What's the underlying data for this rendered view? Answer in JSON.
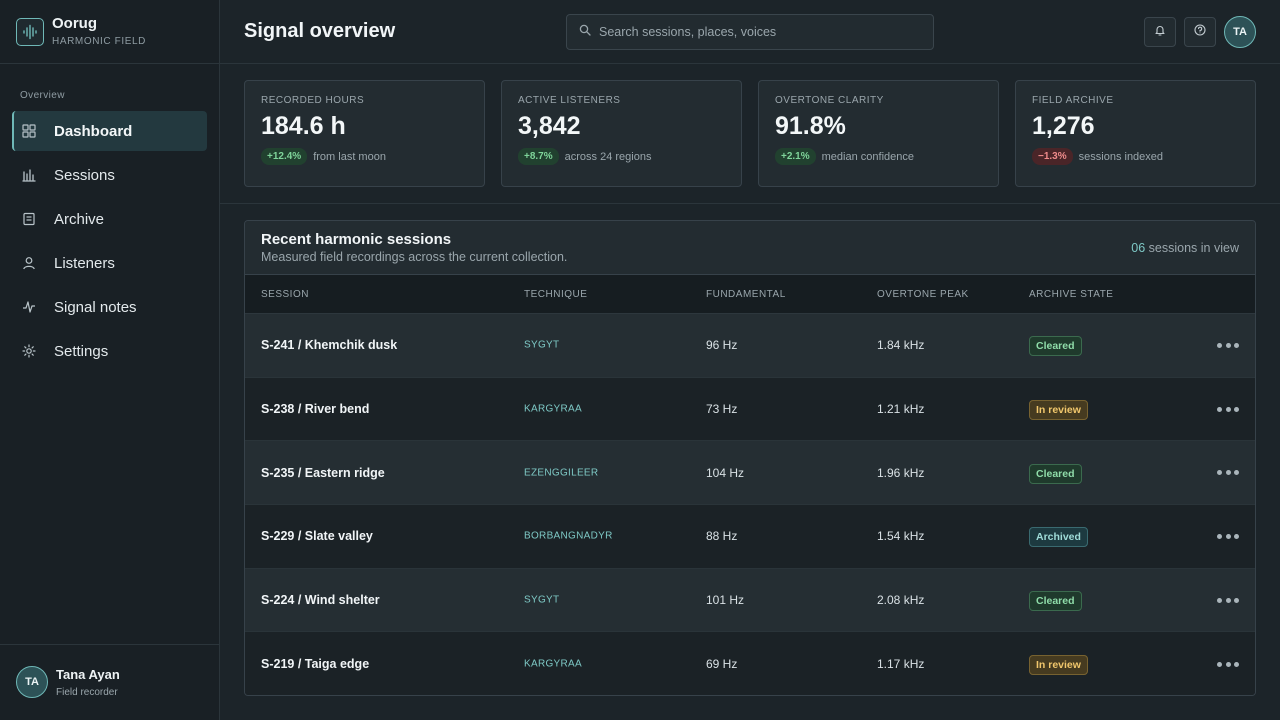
{
  "brand": {
    "name": "Oorug",
    "subtitle": "HARMONIC FIELD"
  },
  "sidebar": {
    "section_label": "Overview",
    "items": [
      {
        "label": "Dashboard",
        "icon": "grid-icon",
        "active": true
      },
      {
        "label": "Sessions",
        "icon": "bars-icon"
      },
      {
        "label": "Archive",
        "icon": "archive-icon"
      },
      {
        "label": "Listeners",
        "icon": "user-icon"
      },
      {
        "label": "Signal notes",
        "icon": "pulse-icon"
      },
      {
        "label": "Settings",
        "icon": "gear-icon"
      }
    ],
    "user": {
      "initials": "TA",
      "name": "Tana Ayan",
      "role": "Field recorder"
    }
  },
  "header": {
    "title": "Signal overview",
    "search_placeholder": "Search sessions, places, voices",
    "avatar_initials": "TA"
  },
  "kpis": [
    {
      "label": "RECORDED HOURS",
      "value": "184.6 h",
      "delta": "+12.4%",
      "delta_dir": "pos",
      "note": "from last moon"
    },
    {
      "label": "ACTIVE LISTENERS",
      "value": "3,842",
      "delta": "+8.7%",
      "delta_dir": "pos",
      "note": "across 24 regions"
    },
    {
      "label": "OVERTONE CLARITY",
      "value": "91.8%",
      "delta": "+2.1%",
      "delta_dir": "pos",
      "note": "median confidence"
    },
    {
      "label": "FIELD ARCHIVE",
      "value": "1,276",
      "delta": "−1.3%",
      "delta_dir": "neg",
      "note": "sessions indexed"
    }
  ],
  "table": {
    "title": "Recent harmonic sessions",
    "subtitle": "Measured field recordings across the current collection.",
    "count": "06",
    "count_suffix": "sessions in view",
    "headers": {
      "session": "SESSION",
      "technique": "TECHNIQUE",
      "fundamental": "FUNDAMENTAL",
      "peak": "OVERTONE PEAK",
      "state": "ARCHIVE STATE"
    },
    "rows": [
      {
        "session": "S-241 / Khemchik dusk",
        "technique": "SYGYT",
        "fundamental": "96 Hz",
        "peak": "1.84 kHz",
        "state": "Cleared",
        "state_kind": "cleared"
      },
      {
        "session": "S-238 / River bend",
        "technique": "KARGYRAA",
        "fundamental": "73 Hz",
        "peak": "1.21 kHz",
        "state": "In review",
        "state_kind": "review"
      },
      {
        "session": "S-235 / Eastern ridge",
        "technique": "EZENGGILEER",
        "fundamental": "104 Hz",
        "peak": "1.96 kHz",
        "state": "Cleared",
        "state_kind": "cleared"
      },
      {
        "session": "S-229 / Slate valley",
        "technique": "BORBANGNADYR",
        "fundamental": "88 Hz",
        "peak": "1.54 kHz",
        "state": "Archived",
        "state_kind": "archived"
      },
      {
        "session": "S-224 / Wind shelter",
        "technique": "SYGYT",
        "fundamental": "101 Hz",
        "peak": "2.08 kHz",
        "state": "Cleared",
        "state_kind": "cleared"
      },
      {
        "session": "S-219 / Taiga edge",
        "technique": "KARGYRAA",
        "fundamental": "69 Hz",
        "peak": "1.17 kHz",
        "state": "In review",
        "state_kind": "review"
      }
    ]
  },
  "colors": {
    "accent": "#6fb8b7",
    "background": "#1c2429",
    "sidebar": "#192025",
    "positive": "#7fd49a",
    "negative": "#ef8b8b",
    "review": "#f1c76c"
  }
}
